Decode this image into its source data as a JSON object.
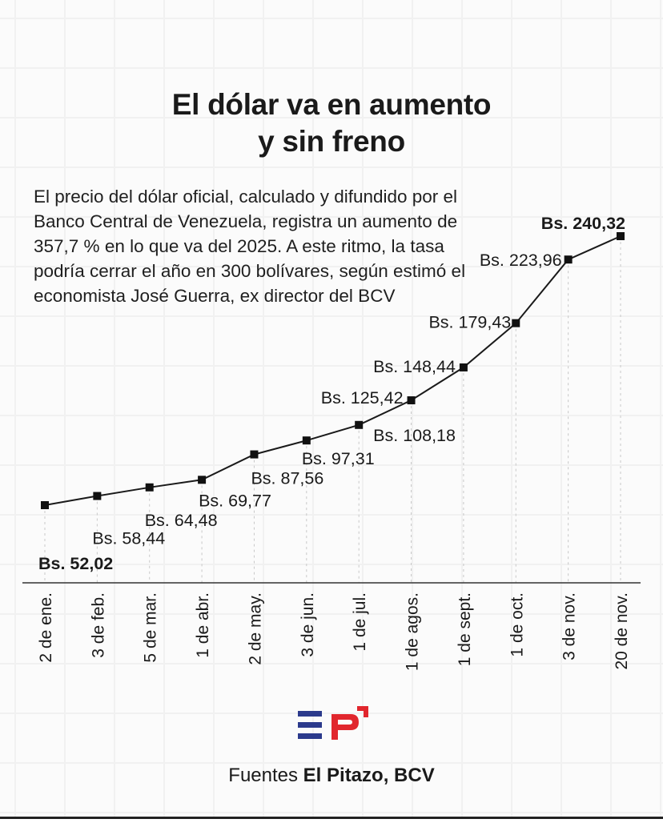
{
  "title_lines": [
    "El dólar va en aumento",
    "y sin freno"
  ],
  "description": "El precio del dólar oficial, calculado y difundido por el Banco Central de Venezuela, registra un aumento de 357,7 % en lo que va del 2025. A este ritmo, la tasa podría cerrar el año en 300 bolívares, según estimó el economista José Guerra, ex director del BCV",
  "chart_data": {
    "type": "line",
    "title": "El dólar va en aumento y sin freno",
    "categories": [
      "2 de ene.",
      "3 de feb.",
      "5 de mar.",
      "1 de abr.",
      "2 de may.",
      "3 de jun.",
      "1 de jul.",
      "1 de agos.",
      "1 de sept.",
      "1 de oct.",
      "3 de nov.",
      "20 de nov."
    ],
    "values": [
      52.02,
      58.44,
      64.48,
      69.77,
      87.56,
      97.31,
      108.18,
      125.42,
      148.44,
      179.43,
      223.96,
      240.32
    ],
    "data_labels": [
      "Bs. 52,02",
      "Bs. 58,44",
      "Bs. 64,48",
      "Bs. 69,77",
      "Bs. 87,56",
      "Bs. 97,31",
      "Bs. 108,18",
      "Bs. 125,42",
      "Bs. 148,44",
      "Bs. 179,43",
      "Bs. 223,96",
      "Bs. 240,32"
    ],
    "emphasized_labels": [
      0,
      11
    ],
    "ylim": [
      0,
      260
    ],
    "grid": "vertical dashed guides",
    "line_color": "#1a1a1a",
    "marker": "square"
  },
  "logo": {
    "text": "EP",
    "colors": {
      "e": "#2b3a8c",
      "p": "#e1262d"
    }
  },
  "footer": {
    "prefix": "Fuentes ",
    "sources": "El Pitazo, BCV"
  }
}
